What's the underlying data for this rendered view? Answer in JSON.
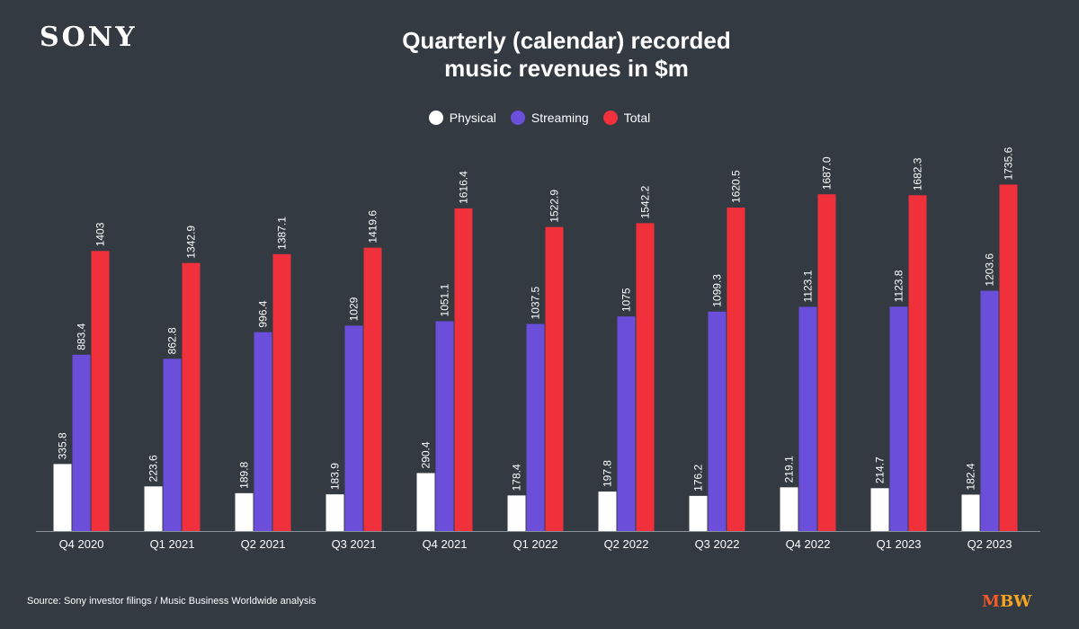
{
  "brand": {
    "logo_text": "SONY"
  },
  "title_lines": [
    "Quarterly (calendar) recorded",
    "music revenues in $m"
  ],
  "legend": [
    {
      "label": "Physical",
      "color": "#ffffff"
    },
    {
      "label": "Streaming",
      "color": "#6b4fdb"
    },
    {
      "label": "Total",
      "color": "#f0303a"
    }
  ],
  "source": "Source: Sony investor filings / Music Business Worldwide analysis",
  "footer_logo": {
    "part1": "M",
    "part2": "BW"
  },
  "chart_data": {
    "type": "bar",
    "title": "Quarterly (calendar) recorded music revenues in $m",
    "xlabel": "",
    "ylabel": "",
    "ylim": [
      0,
      1850
    ],
    "grid": false,
    "legend_position": "top-center",
    "categories": [
      "Q4 2020",
      "Q1 2021",
      "Q2 2021",
      "Q3 2021",
      "Q4 2021",
      "Q1 2022",
      "Q2 2022",
      "Q3 2022",
      "Q4 2022",
      "Q1 2023",
      "Q2 2023"
    ],
    "series": [
      {
        "name": "Physical",
        "color": "#ffffff",
        "values": [
          335.8,
          223.6,
          189.8,
          183.9,
          290.4,
          178.4,
          197.8,
          176.2,
          219.1,
          214.7,
          182.4
        ],
        "labels": [
          "335.8",
          "223.6",
          "189.8",
          "183.9",
          "290.4",
          "178.4",
          "197.8",
          "176.2",
          "219.1",
          "214.7",
          "182.4"
        ]
      },
      {
        "name": "Streaming",
        "color": "#6b4fdb",
        "values": [
          883.4,
          862.8,
          996.4,
          1029,
          1051.1,
          1037.5,
          1075,
          1099.3,
          1123.1,
          1123.8,
          1203.6
        ],
        "labels": [
          "883.4",
          "862.8",
          "996.4",
          "1029",
          "1051.1",
          "1037.5",
          "1075",
          "1099.3",
          "1123.1",
          "1123.8",
          "1203.6"
        ]
      },
      {
        "name": "Total",
        "color": "#f0303a",
        "values": [
          1403,
          1342.9,
          1387.1,
          1419.6,
          1616.4,
          1522.9,
          1542.2,
          1620.5,
          1687.0,
          1682.3,
          1735.6
        ],
        "labels": [
          "1403",
          "1342.9",
          "1387.1",
          "1419.6",
          "1616.4",
          "1522.9",
          "1542.2",
          "1620.5",
          "1687.0",
          "1682.3",
          "1735.6"
        ]
      }
    ]
  }
}
